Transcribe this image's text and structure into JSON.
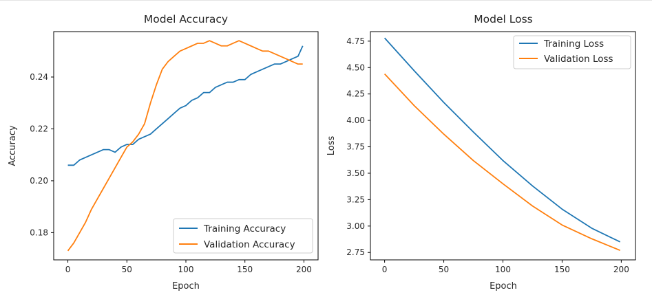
{
  "chart_data": [
    {
      "type": "line",
      "title": "Model Accuracy",
      "xlabel": "Epoch",
      "ylabel": "Accuracy",
      "xlim": [
        -12,
        212
      ],
      "ylim": [
        0.1695,
        0.2575
      ],
      "xticks": [
        0,
        50,
        100,
        150,
        200
      ],
      "yticks": [
        0.18,
        0.2,
        0.22,
        0.24
      ],
      "ytick_labels": [
        "0.18",
        "0.20",
        "0.22",
        "0.24"
      ],
      "grid": false,
      "legend_position": "lower right",
      "series": [
        {
          "name": "Training Accuracy",
          "color": "#1f77b4",
          "x": [
            0,
            5,
            10,
            15,
            20,
            25,
            30,
            35,
            40,
            45,
            50,
            55,
            60,
            65,
            70,
            75,
            80,
            85,
            90,
            95,
            100,
            105,
            110,
            115,
            120,
            125,
            130,
            135,
            140,
            145,
            150,
            155,
            160,
            165,
            170,
            175,
            180,
            185,
            190,
            195,
            199
          ],
          "values": [
            0.206,
            0.206,
            0.208,
            0.209,
            0.21,
            0.211,
            0.212,
            0.212,
            0.211,
            0.213,
            0.214,
            0.214,
            0.216,
            0.217,
            0.218,
            0.22,
            0.222,
            0.224,
            0.226,
            0.228,
            0.229,
            0.231,
            0.232,
            0.234,
            0.234,
            0.236,
            0.237,
            0.238,
            0.238,
            0.239,
            0.239,
            0.241,
            0.242,
            0.243,
            0.244,
            0.245,
            0.245,
            0.246,
            0.247,
            0.248,
            0.252
          ]
        },
        {
          "name": "Validation Accuracy",
          "color": "#ff7f0e",
          "x": [
            0,
            5,
            10,
            15,
            20,
            25,
            30,
            35,
            40,
            45,
            50,
            55,
            60,
            65,
            70,
            75,
            80,
            85,
            90,
            95,
            100,
            105,
            110,
            115,
            120,
            125,
            130,
            135,
            140,
            145,
            150,
            155,
            160,
            165,
            170,
            175,
            180,
            185,
            190,
            195,
            199
          ],
          "values": [
            0.173,
            0.176,
            0.18,
            0.184,
            0.189,
            0.193,
            0.197,
            0.201,
            0.205,
            0.209,
            0.213,
            0.215,
            0.218,
            0.222,
            0.23,
            0.237,
            0.243,
            0.246,
            0.248,
            0.25,
            0.251,
            0.252,
            0.253,
            0.253,
            0.254,
            0.253,
            0.252,
            0.252,
            0.253,
            0.254,
            0.253,
            0.252,
            0.251,
            0.25,
            0.25,
            0.249,
            0.248,
            0.247,
            0.246,
            0.245,
            0.245
          ]
        }
      ]
    },
    {
      "type": "line",
      "title": "Model Loss",
      "xlabel": "Epoch",
      "ylabel": "Loss",
      "xlim": [
        -12,
        212
      ],
      "ylim": [
        2.68,
        4.84
      ],
      "xticks": [
        0,
        50,
        100,
        150,
        200
      ],
      "yticks": [
        2.75,
        3.0,
        3.25,
        3.5,
        3.75,
        4.0,
        4.25,
        4.5,
        4.75
      ],
      "ytick_labels": [
        "2.75",
        "3.00",
        "3.25",
        "3.50",
        "3.75",
        "4.00",
        "4.25",
        "4.50",
        "4.75"
      ],
      "grid": false,
      "legend_position": "upper right",
      "series": [
        {
          "name": "Training Loss",
          "color": "#1f77b4",
          "x": [
            0,
            25,
            50,
            75,
            100,
            125,
            150,
            175,
            199
          ],
          "values": [
            4.78,
            4.47,
            4.17,
            3.89,
            3.62,
            3.38,
            3.16,
            2.98,
            2.85
          ]
        },
        {
          "name": "Validation Loss",
          "color": "#ff7f0e",
          "x": [
            0,
            25,
            50,
            75,
            100,
            125,
            150,
            175,
            199
          ],
          "values": [
            4.44,
            4.14,
            3.87,
            3.62,
            3.4,
            3.19,
            3.01,
            2.88,
            2.77
          ]
        }
      ]
    }
  ]
}
